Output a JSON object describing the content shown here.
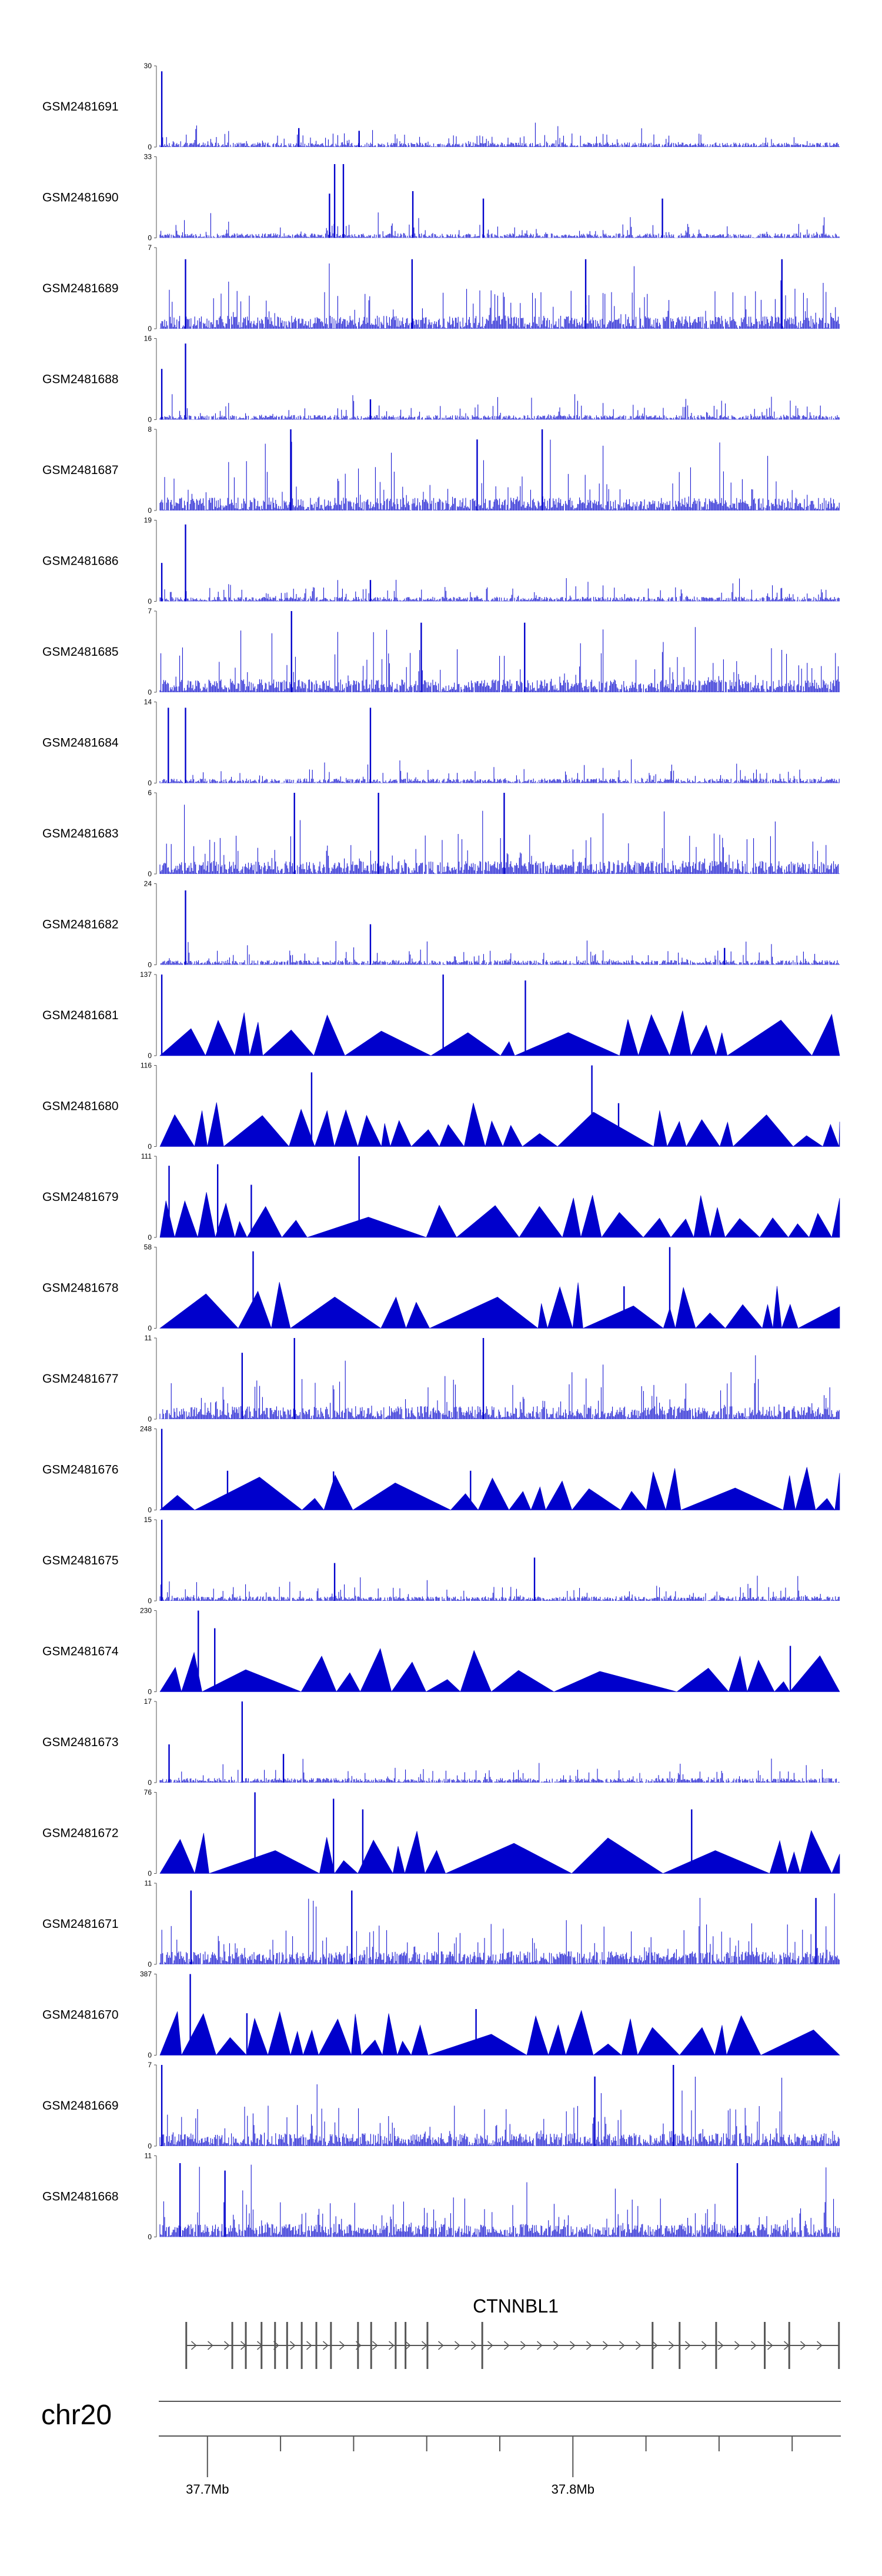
{
  "colors": {
    "signal": "#0000cc",
    "axis": "#555555",
    "gene": "#555555",
    "text": "#000000"
  },
  "chart_data": {
    "type": "area",
    "title": "",
    "genomic_range_mb": [
      37.687,
      37.873
    ],
    "tracks": [
      {
        "name": "GSM2481691",
        "ymax": 30,
        "profile": "dense",
        "peaks": [
          [
            37.6875,
            28
          ],
          [
            37.725,
            7
          ],
          [
            37.7415,
            6
          ]
        ]
      },
      {
        "name": "GSM2481690",
        "ymax": 33,
        "profile": "sparse",
        "peaks": [
          [
            37.7348,
            30
          ],
          [
            37.7372,
            30
          ],
          [
            37.7334,
            18
          ],
          [
            37.7562,
            19
          ],
          [
            37.7755,
            16
          ],
          [
            37.8245,
            16
          ]
        ]
      },
      {
        "name": "GSM2481689",
        "ymax": 7,
        "profile": "dense",
        "peaks": [
          [
            37.694,
            6
          ],
          [
            37.756,
            6
          ],
          [
            37.8035,
            6
          ],
          [
            37.8572,
            6
          ]
        ]
      },
      {
        "name": "GSM2481688",
        "ymax": 16,
        "profile": "dense",
        "peaks": [
          [
            37.694,
            15
          ],
          [
            37.6875,
            10
          ],
          [
            37.7446,
            4
          ]
        ]
      },
      {
        "name": "GSM2481687",
        "ymax": 8,
        "profile": "dense",
        "peaks": [
          [
            37.7228,
            8
          ],
          [
            37.7738,
            7
          ],
          [
            37.7916,
            8
          ]
        ]
      },
      {
        "name": "GSM2481686",
        "ymax": 19,
        "profile": "dense",
        "peaks": [
          [
            37.694,
            18
          ],
          [
            37.6875,
            9
          ],
          [
            37.7446,
            5
          ]
        ]
      },
      {
        "name": "GSM2481685",
        "ymax": 7,
        "profile": "dense",
        "peaks": [
          [
            37.723,
            7
          ],
          [
            37.7585,
            6
          ],
          [
            37.7868,
            6
          ]
        ]
      },
      {
        "name": "GSM2481684",
        "ymax": 14,
        "profile": "dense",
        "peaks": [
          [
            37.6893,
            13
          ],
          [
            37.694,
            13
          ],
          [
            37.7446,
            13
          ]
        ]
      },
      {
        "name": "GSM2481683",
        "ymax": 6,
        "profile": "dense",
        "peaks": [
          [
            37.7238,
            6
          ],
          [
            37.7468,
            6
          ],
          [
            37.7812,
            6
          ]
        ]
      },
      {
        "name": "GSM2481682",
        "ymax": 24,
        "profile": "dense",
        "peaks": [
          [
            37.694,
            22
          ],
          [
            37.7446,
            12
          ],
          [
            37.8415,
            5
          ]
        ]
      },
      {
        "name": "GSM2481681",
        "ymax": 137,
        "profile": "tent",
        "peaks": [
          [
            37.6875,
            137
          ],
          [
            37.7645,
            137
          ],
          [
            37.787,
            127
          ],
          [
            37.7338,
            50
          ]
        ]
      },
      {
        "name": "GSM2481680",
        "ymax": 116,
        "profile": "tent",
        "peaks": [
          [
            37.7285,
            106
          ],
          [
            37.8052,
            116
          ],
          [
            37.8125,
            62
          ]
        ]
      },
      {
        "name": "GSM2481679",
        "ymax": 111,
        "profile": "tent",
        "peaks": [
          [
            37.7415,
            111
          ],
          [
            37.6895,
            98
          ],
          [
            37.712,
            72
          ],
          [
            37.7028,
            100
          ]
        ]
      },
      {
        "name": "GSM2481678",
        "ymax": 58,
        "profile": "tent",
        "peaks": [
          [
            37.8265,
            58
          ],
          [
            37.7125,
            55
          ],
          [
            37.814,
            30
          ]
        ]
      },
      {
        "name": "GSM2481677",
        "ymax": 11,
        "profile": "dense",
        "peaks": [
          [
            37.7238,
            11
          ],
          [
            37.7095,
            9
          ],
          [
            37.7755,
            11
          ]
        ]
      },
      {
        "name": "GSM2481676",
        "ymax": 248,
        "profile": "tent",
        "peaks": [
          [
            37.6875,
            248
          ],
          [
            37.7055,
            120
          ],
          [
            37.7345,
            118
          ],
          [
            37.772,
            120
          ]
        ]
      },
      {
        "name": "GSM2481675",
        "ymax": 15,
        "profile": "dense",
        "peaks": [
          [
            37.6875,
            15
          ],
          [
            37.7348,
            7
          ],
          [
            37.7895,
            8
          ]
        ]
      },
      {
        "name": "GSM2481674",
        "ymax": 230,
        "profile": "tent",
        "peaks": [
          [
            37.6975,
            230
          ],
          [
            37.702,
            180
          ],
          [
            37.8595,
            130
          ]
        ]
      },
      {
        "name": "GSM2481673",
        "ymax": 17,
        "profile": "dense",
        "peaks": [
          [
            37.7095,
            17
          ],
          [
            37.6895,
            8
          ],
          [
            37.7208,
            6
          ]
        ]
      },
      {
        "name": "GSM2481672",
        "ymax": 76,
        "profile": "tent",
        "peaks": [
          [
            37.713,
            76
          ],
          [
            37.7345,
            70
          ],
          [
            37.7425,
            60
          ],
          [
            37.8325,
            60
          ]
        ]
      },
      {
        "name": "GSM2481671",
        "ymax": 11,
        "profile": "dense",
        "peaks": [
          [
            37.6955,
            10
          ],
          [
            37.7395,
            10
          ],
          [
            37.8665,
            9
          ]
        ]
      },
      {
        "name": "GSM2481670",
        "ymax": 387,
        "profile": "tent",
        "peaks": [
          [
            37.6953,
            387
          ],
          [
            37.7108,
            200
          ],
          [
            37.7735,
            220
          ]
        ]
      },
      {
        "name": "GSM2481669",
        "ymax": 7,
        "profile": "dense",
        "peaks": [
          [
            37.6875,
            7
          ],
          [
            37.8275,
            7
          ],
          [
            37.806,
            6
          ]
        ]
      },
      {
        "name": "GSM2481668",
        "ymax": 11,
        "profile": "dense",
        "peaks": [
          [
            37.6925,
            10
          ],
          [
            37.7048,
            9
          ],
          [
            37.845,
            10
          ]
        ]
      }
    ],
    "gene": {
      "name": "CTNNBL1",
      "strand": "+",
      "start_mb": 37.694,
      "end_mb": 37.873,
      "exons_mb": [
        37.6942,
        37.7068,
        37.7105,
        37.7148,
        37.7185,
        37.7218,
        37.7258,
        37.7298,
        37.7338,
        37.7412,
        37.7448,
        37.7515,
        37.7542,
        37.7602,
        37.7752,
        37.8218,
        37.8292,
        37.8392,
        37.8525,
        37.8592,
        37.8728
      ]
    },
    "axis": {
      "chromosome": "chr20",
      "major_ticks": [
        {
          "value": 37.7,
          "label": "37.7Mb"
        },
        {
          "value": 37.8,
          "label": "37.8Mb"
        }
      ],
      "minor_ticks": [
        37.72,
        37.74,
        37.76,
        37.78,
        37.82,
        37.84,
        37.86
      ]
    }
  }
}
